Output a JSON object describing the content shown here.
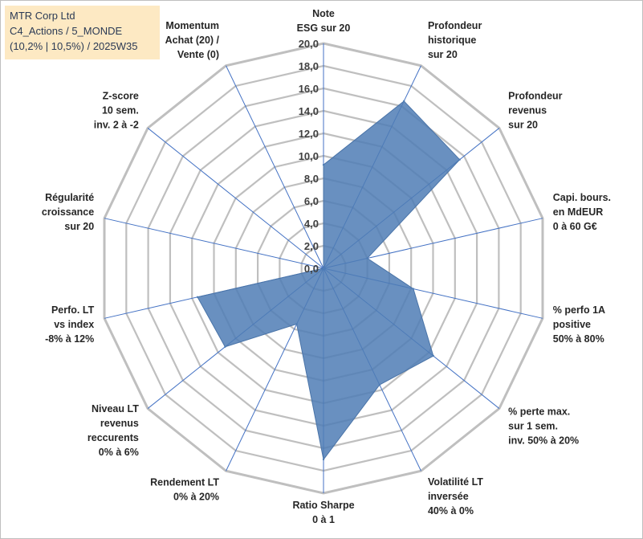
{
  "info_box": {
    "line1": "MTR Corp Ltd",
    "line2": "C4_Actions / 5_MONDE",
    "line3": "(10,2% | 10,5%) / 2025W35"
  },
  "chart_data": {
    "type": "radar",
    "title": "",
    "rmin": 0,
    "rmax": 20,
    "tick_step": 2,
    "tick_labels": [
      "0,0",
      "2,0",
      "4,0",
      "6,0",
      "8,0",
      "10,0",
      "12,0",
      "14,0",
      "16,0",
      "18,0",
      "20,0"
    ],
    "grid": true,
    "legend": "none",
    "colors": {
      "fill": "#4f7db5",
      "grid": "#bfbfbf",
      "axis": "#4472c4"
    },
    "axes": [
      {
        "label": [
          "Note",
          "ESG sur 20"
        ]
      },
      {
        "label": [
          "Profondeur",
          "historique",
          "sur 20"
        ]
      },
      {
        "label": [
          "Profondeur",
          "revenus",
          "sur 20"
        ]
      },
      {
        "label": [
          "Capi. bours.",
          "en MdEUR",
          "0 à 60 G€"
        ]
      },
      {
        "label": [
          "% perfo 1A",
          "positive",
          "50% à 80%"
        ]
      },
      {
        "label": [
          "% perte max.",
          "sur 1 sem.",
          "inv. 50% à 20%"
        ]
      },
      {
        "label": [
          "Volatilité LT",
          "inversée",
          "40% à 0%"
        ]
      },
      {
        "label": [
          "Ratio Sharpe",
          "0 à 1"
        ]
      },
      {
        "label": [
          "Rendement LT",
          "0% à 20%"
        ]
      },
      {
        "label": [
          "Niveau LT",
          "revenus",
          "reccurents",
          "0% à 6%"
        ]
      },
      {
        "label": [
          "Perfo. LT",
          "vs index",
          "-8% à 12%"
        ]
      },
      {
        "label": [
          "Régularité",
          "croissance",
          "sur 20"
        ]
      },
      {
        "label": [
          "Z-score",
          "10 sem.",
          "inv. 2 à -2"
        ]
      },
      {
        "label": [
          "Momentum",
          "Achat (20) /",
          "Vente (0)"
        ]
      }
    ],
    "series": [
      {
        "values": [
          9.2,
          16.5,
          15.5,
          4.0,
          8.2,
          12.5,
          11.5,
          17.0,
          5.5,
          11.2,
          11.5,
          0,
          0,
          0
        ]
      }
    ]
  }
}
